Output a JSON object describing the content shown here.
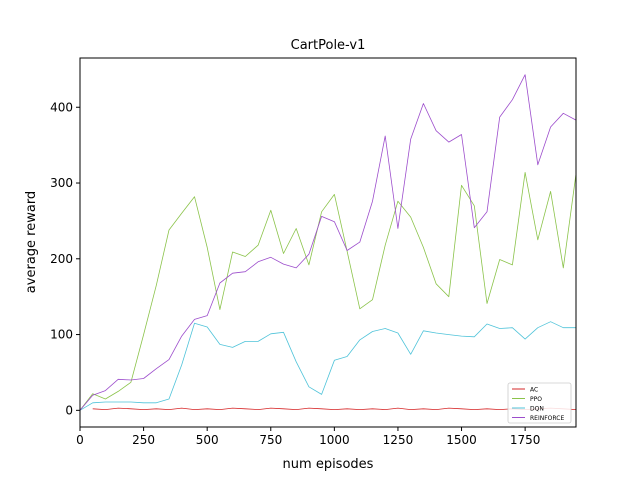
{
  "chart_data": {
    "type": "line",
    "title": "CartPole-v1",
    "xlabel": "num episodes",
    "ylabel": "average reward",
    "xlim": [
      0,
      1950
    ],
    "ylim": [
      -22,
      465
    ],
    "xticks": [
      0,
      250,
      500,
      750,
      1000,
      1250,
      1500,
      1750
    ],
    "yticks": [
      0,
      100,
      200,
      300,
      400
    ],
    "grid": false,
    "legend_position": "bottom-right",
    "series": [
      {
        "name": "AC",
        "color": "#d62728",
        "x": [
          50,
          100,
          150,
          200,
          250,
          300,
          350,
          400,
          450,
          500,
          550,
          600,
          650,
          700,
          750,
          800,
          850,
          900,
          950,
          1000,
          1050,
          1100,
          1150,
          1200,
          1250,
          1300,
          1350,
          1400,
          1450,
          1500,
          1550,
          1600,
          1650,
          1700,
          1750,
          1800,
          1850,
          1900,
          1950
        ],
        "y": [
          2,
          1,
          3,
          2,
          1,
          2,
          1,
          3,
          1,
          2,
          1,
          3,
          2,
          1,
          3,
          2,
          1,
          3,
          2,
          1,
          2,
          1,
          2,
          1,
          3,
          1,
          2,
          1,
          3,
          2,
          1,
          2,
          1,
          2,
          1,
          2,
          3,
          2,
          1
        ]
      },
      {
        "name": "PPO",
        "color": "#8bc34a",
        "x": [
          0,
          50,
          100,
          150,
          200,
          250,
          300,
          350,
          400,
          450,
          500,
          550,
          600,
          650,
          700,
          750,
          800,
          850,
          900,
          950,
          1000,
          1050,
          1100,
          1150,
          1200,
          1250,
          1300,
          1350,
          1400,
          1450,
          1500,
          1550,
          1600,
          1650,
          1700,
          1750,
          1800,
          1850,
          1900,
          1950
        ],
        "y": [
          0,
          22,
          15,
          25,
          37,
          100,
          165,
          238,
          260,
          282,
          215,
          133,
          209,
          203,
          218,
          264,
          207,
          240,
          192,
          262,
          285,
          210,
          134,
          146,
          218,
          276,
          255,
          215,
          167,
          150,
          297,
          270,
          141,
          199,
          192,
          314,
          225,
          289,
          188,
          312
        ]
      },
      {
        "name": "DQN",
        "color": "#4fc3d9",
        "x": [
          0,
          50,
          100,
          150,
          200,
          250,
          300,
          350,
          400,
          450,
          500,
          550,
          600,
          650,
          700,
          750,
          800,
          850,
          900,
          950,
          1000,
          1050,
          1100,
          1150,
          1200,
          1250,
          1300,
          1350,
          1400,
          1450,
          1500,
          1550,
          1600,
          1650,
          1700,
          1750,
          1800,
          1850,
          1900,
          1950
        ],
        "y": [
          0,
          10,
          11,
          11,
          11,
          10,
          10,
          15,
          60,
          115,
          110,
          87,
          83,
          91,
          91,
          101,
          103,
          64,
          31,
          21,
          66,
          71,
          93,
          104,
          108,
          102,
          74,
          105,
          102,
          100,
          98,
          97,
          114,
          108,
          109,
          94,
          109,
          117,
          109,
          109
        ]
      },
      {
        "name": "REINFORCE",
        "color": "#9c4dcc",
        "x": [
          0,
          50,
          100,
          150,
          200,
          250,
          300,
          350,
          400,
          450,
          500,
          550,
          600,
          650,
          700,
          750,
          800,
          850,
          900,
          950,
          1000,
          1050,
          1100,
          1150,
          1200,
          1250,
          1300,
          1350,
          1400,
          1450,
          1500,
          1550,
          1600,
          1650,
          1700,
          1750,
          1800,
          1850,
          1900,
          1950
        ],
        "y": [
          0,
          20,
          26,
          41,
          40,
          42,
          55,
          67,
          98,
          120,
          125,
          168,
          181,
          183,
          196,
          202,
          193,
          188,
          206,
          256,
          249,
          211,
          222,
          276,
          362,
          240,
          358,
          405,
          369,
          354,
          364,
          241,
          262,
          387,
          410,
          443,
          324,
          374,
          392,
          383
        ]
      }
    ]
  }
}
